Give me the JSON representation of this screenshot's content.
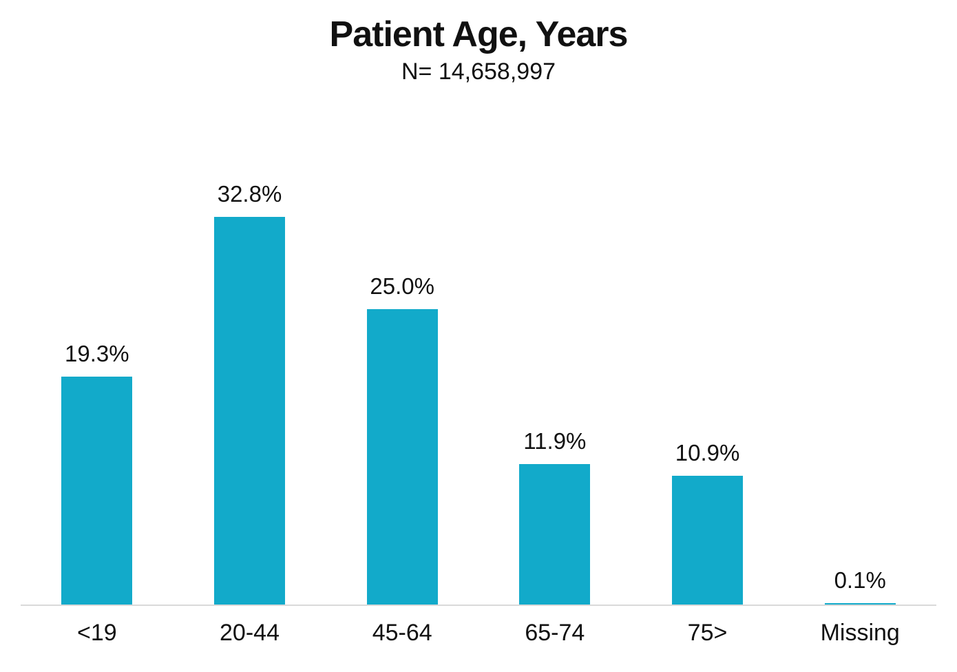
{
  "title": "Patient Age, Years",
  "subtitle": "N= 14,658,997",
  "chart_data": {
    "type": "bar",
    "title": "Patient Age, Years",
    "subtitle": "N= 14,658,997",
    "categories": [
      "<19",
      "20-44",
      "45-64",
      "65-74",
      "75>",
      "Missing"
    ],
    "values": [
      19.3,
      32.8,
      25.0,
      11.9,
      10.9,
      0.1
    ],
    "labels": [
      "19.3%",
      "32.8%",
      "25.0%",
      "11.9%",
      "10.9%",
      "0.1%"
    ],
    "xlabel": "",
    "ylabel": "",
    "ylim": [
      0,
      35
    ],
    "grid": false,
    "legend": false,
    "bar_color": "#12AACA",
    "axis_line_color": "#D9D9D9",
    "text_color": "#111111",
    "background_color": "#FFFFFF"
  }
}
